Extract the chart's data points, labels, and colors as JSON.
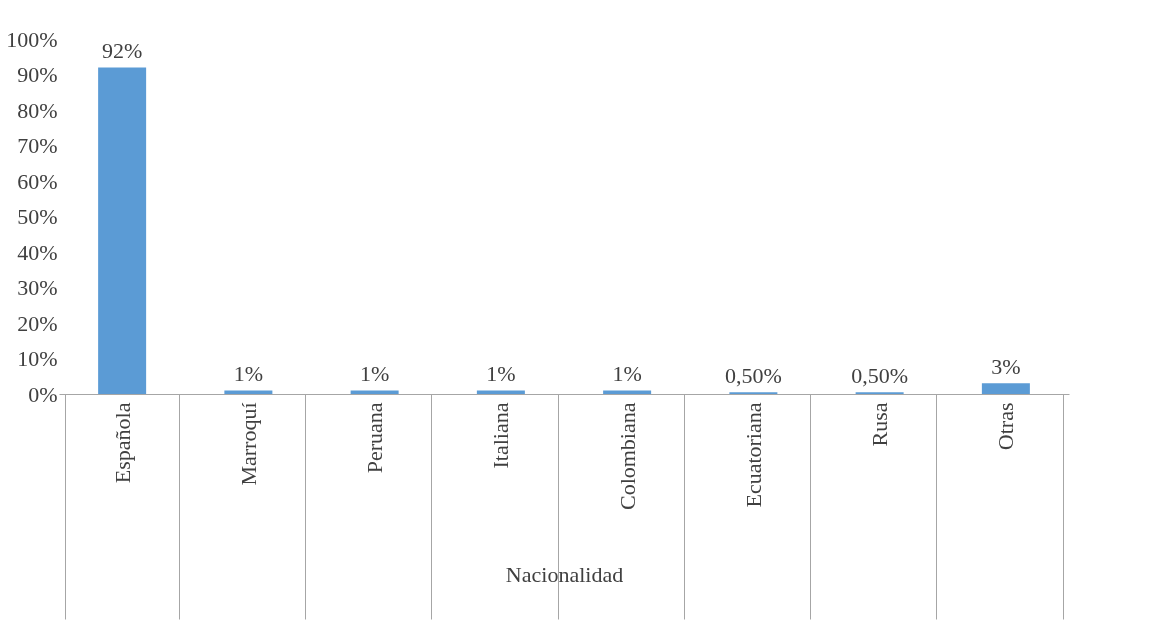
{
  "chart_data": {
    "type": "bar",
    "xlabel": "Nacionalidad",
    "categories": [
      "Española",
      "Marroquí",
      "Peruana",
      "Italiana",
      "Colombiana",
      "Ecuatoriana",
      "Rusa",
      "Otras"
    ],
    "values": [
      92,
      1,
      1,
      1,
      1,
      0.5,
      0.5,
      3
    ],
    "value_labels": [
      "92%",
      "1%",
      "1%",
      "1%",
      "1%",
      "0,50%",
      "0,50%",
      "3%"
    ],
    "color": "#5b9bd5",
    "ylim": [
      0,
      100
    ],
    "yticks": [
      {
        "value": 0,
        "label": "0%"
      },
      {
        "value": 10,
        "label": "10%"
      },
      {
        "value": 20,
        "label": "20%"
      },
      {
        "value": 30,
        "label": "30%"
      },
      {
        "value": 40,
        "label": "40%"
      },
      {
        "value": 50,
        "label": "50%"
      },
      {
        "value": 60,
        "label": "60%"
      },
      {
        "value": 70,
        "label": "70%"
      },
      {
        "value": 80,
        "label": "80%"
      },
      {
        "value": 90,
        "label": "90%"
      },
      {
        "value": 100,
        "label": "100%"
      }
    ],
    "grid": false
  }
}
